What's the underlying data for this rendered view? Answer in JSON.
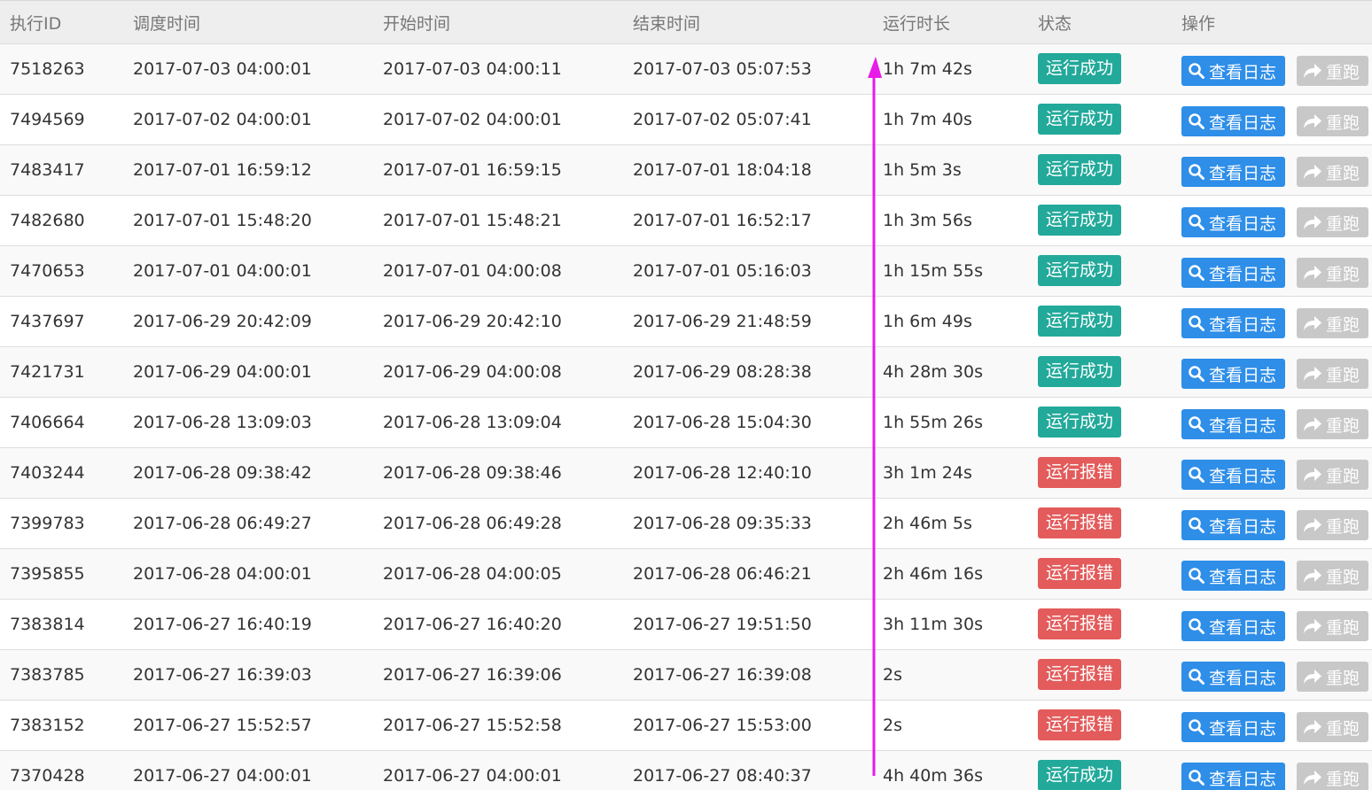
{
  "colors": {
    "success": "#22a99a",
    "error": "#e35b5b",
    "log_button": "#2e8ee8",
    "rerun_button": "#c8c8c8",
    "arrow": "#e81be8"
  },
  "headers": {
    "exec_id": "执行ID",
    "schedule_time": "调度时间",
    "start_time": "开始时间",
    "end_time": "结束时间",
    "duration": "运行时长",
    "status": "状态",
    "actions": "操作"
  },
  "buttons": {
    "view_log": "查看日志",
    "rerun": "重跑",
    "view_log_icon": "search-icon",
    "rerun_icon": "share-arrow-icon"
  },
  "rows": [
    {
      "id": "7518263",
      "schedule": "2017-07-03 04:00:01",
      "start": "2017-07-03 04:00:11",
      "end": "2017-07-03 05:07:53",
      "duration": "1h 7m 42s",
      "status": "运行成功",
      "status_type": "success"
    },
    {
      "id": "7494569",
      "schedule": "2017-07-02 04:00:01",
      "start": "2017-07-02 04:00:01",
      "end": "2017-07-02 05:07:41",
      "duration": "1h 7m 40s",
      "status": "运行成功",
      "status_type": "success"
    },
    {
      "id": "7483417",
      "schedule": "2017-07-01 16:59:12",
      "start": "2017-07-01 16:59:15",
      "end": "2017-07-01 18:04:18",
      "duration": "1h 5m 3s",
      "status": "运行成功",
      "status_type": "success"
    },
    {
      "id": "7482680",
      "schedule": "2017-07-01 15:48:20",
      "start": "2017-07-01 15:48:21",
      "end": "2017-07-01 16:52:17",
      "duration": "1h 3m 56s",
      "status": "运行成功",
      "status_type": "success"
    },
    {
      "id": "7470653",
      "schedule": "2017-07-01 04:00:01",
      "start": "2017-07-01 04:00:08",
      "end": "2017-07-01 05:16:03",
      "duration": "1h 15m 55s",
      "status": "运行成功",
      "status_type": "success"
    },
    {
      "id": "7437697",
      "schedule": "2017-06-29 20:42:09",
      "start": "2017-06-29 20:42:10",
      "end": "2017-06-29 21:48:59",
      "duration": "1h 6m 49s",
      "status": "运行成功",
      "status_type": "success"
    },
    {
      "id": "7421731",
      "schedule": "2017-06-29 04:00:01",
      "start": "2017-06-29 04:00:08",
      "end": "2017-06-29 08:28:38",
      "duration": "4h 28m 30s",
      "status": "运行成功",
      "status_type": "success"
    },
    {
      "id": "7406664",
      "schedule": "2017-06-28 13:09:03",
      "start": "2017-06-28 13:09:04",
      "end": "2017-06-28 15:04:30",
      "duration": "1h 55m 26s",
      "status": "运行成功",
      "status_type": "success"
    },
    {
      "id": "7403244",
      "schedule": "2017-06-28 09:38:42",
      "start": "2017-06-28 09:38:46",
      "end": "2017-06-28 12:40:10",
      "duration": "3h 1m 24s",
      "status": "运行报错",
      "status_type": "error"
    },
    {
      "id": "7399783",
      "schedule": "2017-06-28 06:49:27",
      "start": "2017-06-28 06:49:28",
      "end": "2017-06-28 09:35:33",
      "duration": "2h 46m 5s",
      "status": "运行报错",
      "status_type": "error"
    },
    {
      "id": "7395855",
      "schedule": "2017-06-28 04:00:01",
      "start": "2017-06-28 04:00:05",
      "end": "2017-06-28 06:46:21",
      "duration": "2h 46m 16s",
      "status": "运行报错",
      "status_type": "error"
    },
    {
      "id": "7383814",
      "schedule": "2017-06-27 16:40:19",
      "start": "2017-06-27 16:40:20",
      "end": "2017-06-27 19:51:50",
      "duration": "3h 11m 30s",
      "status": "运行报错",
      "status_type": "error"
    },
    {
      "id": "7383785",
      "schedule": "2017-06-27 16:39:03",
      "start": "2017-06-27 16:39:06",
      "end": "2017-06-27 16:39:08",
      "duration": "2s",
      "status": "运行报错",
      "status_type": "error"
    },
    {
      "id": "7383152",
      "schedule": "2017-06-27 15:52:57",
      "start": "2017-06-27 15:52:58",
      "end": "2017-06-27 15:53:00",
      "duration": "2s",
      "status": "运行报错",
      "status_type": "error"
    },
    {
      "id": "7370428",
      "schedule": "2017-06-27 04:00:01",
      "start": "2017-06-27 04:00:01",
      "end": "2017-06-27 08:40:37",
      "duration": "4h 40m 36s",
      "status": "运行成功",
      "status_type": "success"
    }
  ]
}
